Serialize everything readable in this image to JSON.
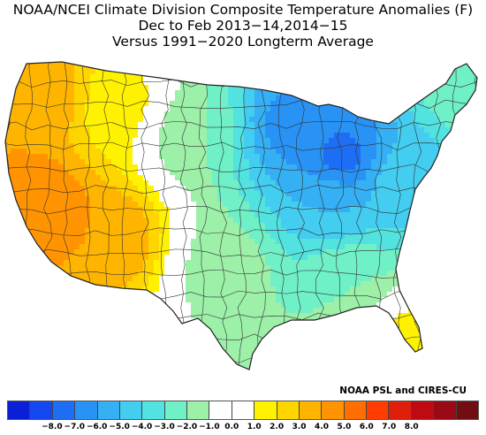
{
  "title": {
    "line1": "NOAA/NCEI Climate Division Composite Temperature Anomalies (F)",
    "line2": "Dec to Feb  2013−14,2014−15",
    "line3": "Versus 1991−2020 Longterm Average"
  },
  "credit": "NOAA PSL and CIRES-CU",
  "legend": {
    "colors": [
      "#0a1fd6",
      "#1447f0",
      "#1e6ef5",
      "#2892f5",
      "#35b0f5",
      "#43cdf0",
      "#52e2e0",
      "#6ff0c6",
      "#9cf0a8",
      "#ffffff",
      "#ffffff",
      "#fff200",
      "#ffd500",
      "#ffb500",
      "#ff9400",
      "#ff6e00",
      "#ff3d00",
      "#e01e0a",
      "#bf0a14",
      "#9a0a14",
      "#700e12"
    ],
    "ticks": [
      "−8.0",
      "−7.0",
      "−6.0",
      "−5.0",
      "−4.0",
      "−3.0",
      "−2.0",
      "−1.0",
      "0.0",
      "1.0",
      "2.0",
      "3.0",
      "4.0",
      "5.0",
      "6.0",
      "7.0",
      "8.0"
    ]
  },
  "map_regions": [
    {
      "region": "pacific-northwest",
      "anomaly": 4.0
    },
    {
      "region": "california-nevada",
      "anomaly": 5.0
    },
    {
      "region": "southwest",
      "anomaly": 4.0
    },
    {
      "region": "northern-rockies",
      "anomaly": 1.5
    },
    {
      "region": "northern-plains",
      "anomaly": -2.0
    },
    {
      "region": "upper-midwest",
      "anomaly": -6.5
    },
    {
      "region": "great-lakes",
      "anomaly": -7.5
    },
    {
      "region": "ohio-valley",
      "anomaly": -5.0
    },
    {
      "region": "northeast",
      "anomaly": -4.5
    },
    {
      "region": "new-england",
      "anomaly": -2.5
    },
    {
      "region": "southern-plains",
      "anomaly": -1.5
    },
    {
      "region": "southeast",
      "anomaly": -2.0
    },
    {
      "region": "florida",
      "anomaly": 1.5
    }
  ]
}
